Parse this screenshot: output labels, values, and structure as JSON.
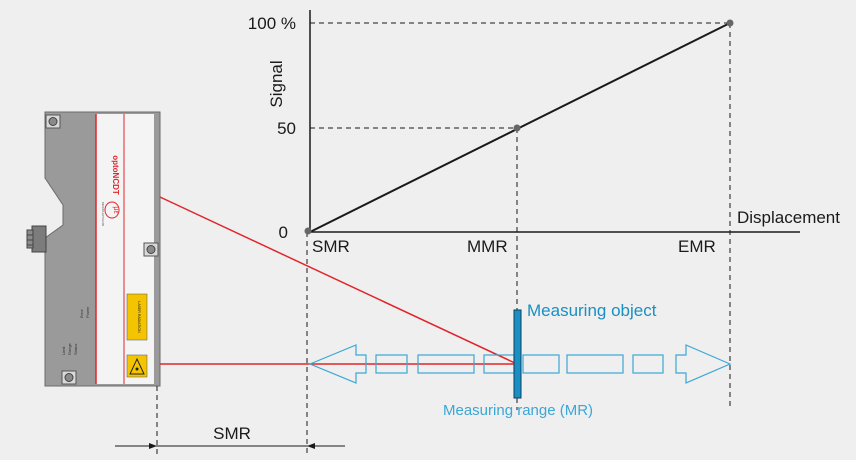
{
  "chart": {
    "y_axis_title": "Signal",
    "y_ticks": [
      "100 %",
      "50",
      "0"
    ],
    "x_axis_title": "Displacement",
    "x_ticks": [
      "SMR",
      "MMR",
      "EMR"
    ],
    "series": [
      {
        "x": "SMR",
        "y": 0
      },
      {
        "x": "MMR",
        "y": 50
      },
      {
        "x": "EMR",
        "y": 100
      }
    ]
  },
  "sensor": {
    "brand": "optoNCDT",
    "logo_mark": "με",
    "logo_sub": "MICRO-EPSILON",
    "status_labels": [
      "Power",
      "Error",
      "Status",
      "Range",
      "Limit"
    ],
    "warning_label": "LASER RADIATION"
  },
  "measurement": {
    "object_label": "Measuring object",
    "range_label": "Measuring range (MR)",
    "offset_label": "SMR"
  },
  "colors": {
    "background": "#efefef",
    "axis": "#1a1a1a",
    "laser": "#e0262b",
    "accent": "#1a8fc4",
    "range_arrow": "#3aa7d6",
    "sensor_body": "#9a9a9a",
    "warning": "#f5c400"
  }
}
